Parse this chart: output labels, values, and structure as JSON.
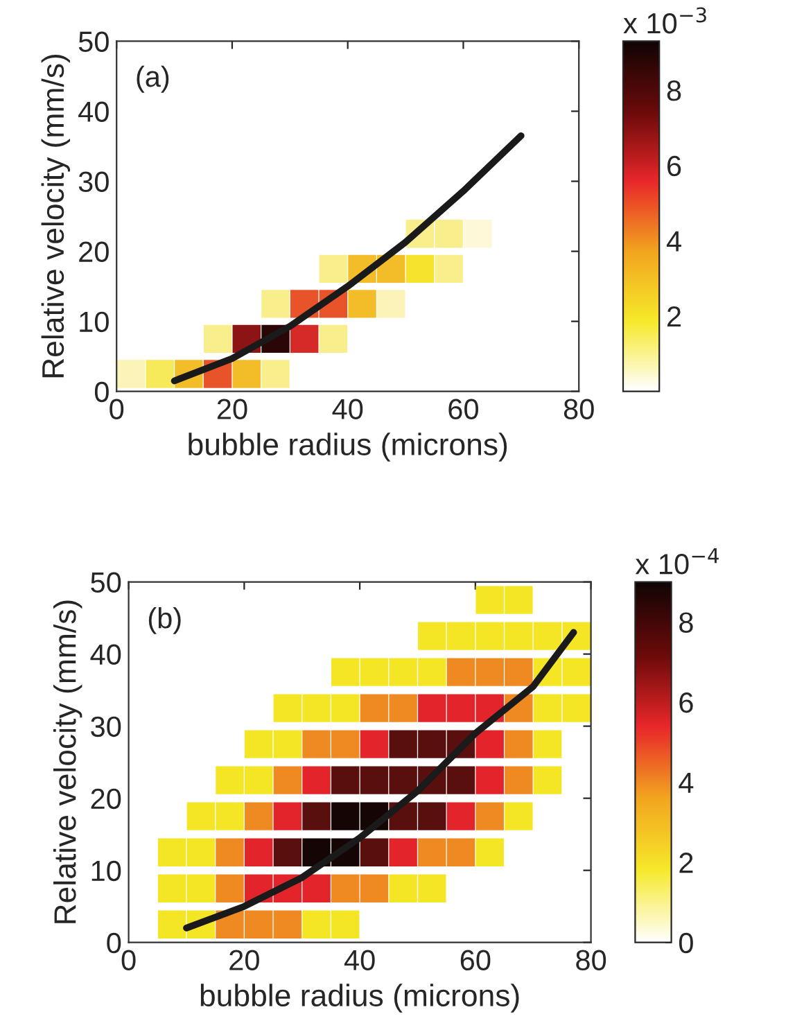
{
  "chart_data": [
    {
      "type": "scatter",
      "xlabel": "bubble radius (microns)",
      "ylabel": "Relative velocity (mm/s)",
      "clabel": "x 10$^{−3}$",
      "annotations": [
        "(a)"
      ],
      "xlim": [
        0,
        80
      ],
      "xticks": [
        0,
        20,
        40,
        60,
        80
      ],
      "ylim": [
        0,
        50
      ],
      "yticks": [
        0,
        10,
        20,
        30,
        40,
        50
      ],
      "clim": [
        0,
        9.3
      ],
      "cticks": [
        2,
        4,
        6,
        8
      ],
      "series": [
        {
          "type": "scatter",
          "marker": "square",
          "x": [
            52.5,
            57.5,
            62.5,
            37.5,
            42.5,
            47.5,
            52.5,
            57.5,
            27.5,
            32.5,
            37.5,
            42.5,
            47.5,
            17.5,
            22.5,
            27.5,
            32.5,
            37.5,
            2.5,
            7.5,
            12.5,
            17.5,
            22.5,
            27.5
          ],
          "values": [
            22.5,
            22.5,
            22.5,
            17.5,
            17.5,
            17.5,
            17.5,
            17.5,
            12.5,
            12.5,
            12.5,
            12.5,
            12.5,
            7.5,
            7.5,
            7.5,
            7.5,
            7.5,
            2.5,
            2.5,
            2.5,
            2.5,
            2.5,
            2.5
          ],
          "colors": [
            "#f8ef8c",
            "#f8ef8c",
            "#fdf8d8",
            "#f8ef8c",
            "#f3bd2a",
            "#f3bd2a",
            "#f5e32e",
            "#f8ef8c",
            "#f8ef8c",
            "#e8532a",
            "#e8532a",
            "#f3bd2a",
            "#fbf3b8",
            "#f8ef8c",
            "#8c1414",
            "#2a0606",
            "#d62a28",
            "#f8ef8c",
            "#fbf3b8",
            "#f6e95a",
            "#f3bd2a",
            "#e8532a",
            "#f3bd2a",
            "#f8ef8c"
          ]
        },
        {
          "type": "line",
          "color": "#1a1a1a",
          "x": [
            10,
            20,
            30,
            40,
            50,
            60,
            70
          ],
          "values": [
            1.5,
            4.7,
            9.3,
            15,
            21.3,
            28.6,
            36.5
          ]
        }
      ]
    },
    {
      "type": "scatter",
      "xlabel": "bubble radius (microns)",
      "ylabel": "Relative velocity (mm/s)",
      "clabel": "x 10$^{−4}$",
      "annotations": [
        "(b)"
      ],
      "xlim": [
        0,
        80
      ],
      "xticks": [
        0,
        20,
        40,
        60,
        80
      ],
      "ylim": [
        0,
        50
      ],
      "yticks": [
        0,
        10,
        20,
        30,
        40,
        50
      ],
      "clim": [
        0,
        9
      ],
      "cticks": [
        0,
        2,
        4,
        6,
        8
      ],
      "series": [
        {
          "type": "scatter",
          "marker": "square",
          "x": [
            62.5,
            67.5,
            52.5,
            57.5,
            62.5,
            67.5,
            72.5,
            77.5,
            37.5,
            42.5,
            47.5,
            52.5,
            57.5,
            62.5,
            67.5,
            72.5,
            77.5,
            27.5,
            32.5,
            37.5,
            42.5,
            47.5,
            52.5,
            57.5,
            62.5,
            67.5,
            72.5,
            77.5,
            22.5,
            27.5,
            32.5,
            37.5,
            42.5,
            47.5,
            52.5,
            57.5,
            62.5,
            67.5,
            72.5,
            17.5,
            22.5,
            27.5,
            32.5,
            37.5,
            42.5,
            47.5,
            52.5,
            57.5,
            62.5,
            67.5,
            72.5,
            12.5,
            17.5,
            22.5,
            27.5,
            32.5,
            37.5,
            42.5,
            47.5,
            52.5,
            57.5,
            62.5,
            67.5,
            7.5,
            12.5,
            17.5,
            22.5,
            27.5,
            32.5,
            37.5,
            42.5,
            47.5,
            52.5,
            57.5,
            62.5,
            7.5,
            12.5,
            17.5,
            22.5,
            27.5,
            32.5,
            37.5,
            42.5,
            47.5,
            52.5,
            7.5,
            12.5,
            17.5,
            22.5,
            27.5,
            32.5,
            37.5
          ],
          "values": [
            47.5,
            47.5,
            42.5,
            42.5,
            42.5,
            42.5,
            42.5,
            42.5,
            37.5,
            37.5,
            37.5,
            37.5,
            37.5,
            37.5,
            37.5,
            37.5,
            37.5,
            32.5,
            32.5,
            32.5,
            32.5,
            32.5,
            32.5,
            32.5,
            32.5,
            32.5,
            32.5,
            32.5,
            27.5,
            27.5,
            27.5,
            27.5,
            27.5,
            27.5,
            27.5,
            27.5,
            27.5,
            27.5,
            27.5,
            22.5,
            22.5,
            22.5,
            22.5,
            22.5,
            22.5,
            22.5,
            22.5,
            22.5,
            22.5,
            22.5,
            22.5,
            17.5,
            17.5,
            17.5,
            17.5,
            17.5,
            17.5,
            17.5,
            17.5,
            17.5,
            17.5,
            17.5,
            17.5,
            12.5,
            12.5,
            12.5,
            12.5,
            12.5,
            12.5,
            12.5,
            12.5,
            12.5,
            12.5,
            12.5,
            12.5,
            7.5,
            7.5,
            7.5,
            7.5,
            7.5,
            7.5,
            7.5,
            7.5,
            7.5,
            7.5,
            2.5,
            2.5,
            2.5,
            2.5,
            2.5,
            2.5,
            2.5
          ],
          "colors": [
            "#f5e625",
            "#f5e625",
            "#f5e625",
            "#f5e625",
            "#f5e625",
            "#f5e625",
            "#f5e625",
            "#f5e625",
            "#f5e625",
            "#f5e625",
            "#f5e625",
            "#f5e625",
            "#ef8a22",
            "#ef8a22",
            "#ef8a22",
            "#f5e625",
            "#f5e625",
            "#f5e625",
            "#f5e625",
            "#f5e625",
            "#ef8a22",
            "#ef8a22",
            "#e3242b",
            "#e3242b",
            "#e3242b",
            "#ef8a22",
            "#f5e625",
            "#f5e625",
            "#f5e625",
            "#f5e625",
            "#ef8a22",
            "#ef8a22",
            "#e3242b",
            "#5a0f0f",
            "#5a0f0f",
            "#5a0f0f",
            "#e3242b",
            "#ef8a22",
            "#f5e625",
            "#f5e625",
            "#f5e625",
            "#ef8a22",
            "#e3242b",
            "#5a0f0f",
            "#5a0f0f",
            "#5a0f0f",
            "#5a0f0f",
            "#5a0f0f",
            "#e3242b",
            "#ef8a22",
            "#f5e625",
            "#f5e625",
            "#f5e625",
            "#ef8a22",
            "#e3242b",
            "#5a0f0f",
            "#150505",
            "#150505",
            "#5a0f0f",
            "#5a0f0f",
            "#e3242b",
            "#ef8a22",
            "#f5e625",
            "#f5e625",
            "#f5e625",
            "#ef8a22",
            "#e3242b",
            "#5a0f0f",
            "#150505",
            "#150505",
            "#5a0f0f",
            "#e3242b",
            "#ef8a22",
            "#ef8a22",
            "#f5e625",
            "#f5e625",
            "#f5e625",
            "#ef8a22",
            "#e3242b",
            "#e3242b",
            "#e3242b",
            "#ef8a22",
            "#ef8a22",
            "#f5e625",
            "#f5e625",
            "#f5e625",
            "#f5e625",
            "#ef8a22",
            "#ef8a22",
            "#ef8a22",
            "#f5e625",
            "#f5e625"
          ]
        },
        {
          "type": "line",
          "color": "#1a1a1a",
          "x": [
            10,
            20,
            30,
            40,
            50,
            60,
            70,
            77
          ],
          "values": [
            2,
            5,
            9,
            14.5,
            21,
            29,
            35.5,
            43
          ]
        }
      ]
    }
  ]
}
